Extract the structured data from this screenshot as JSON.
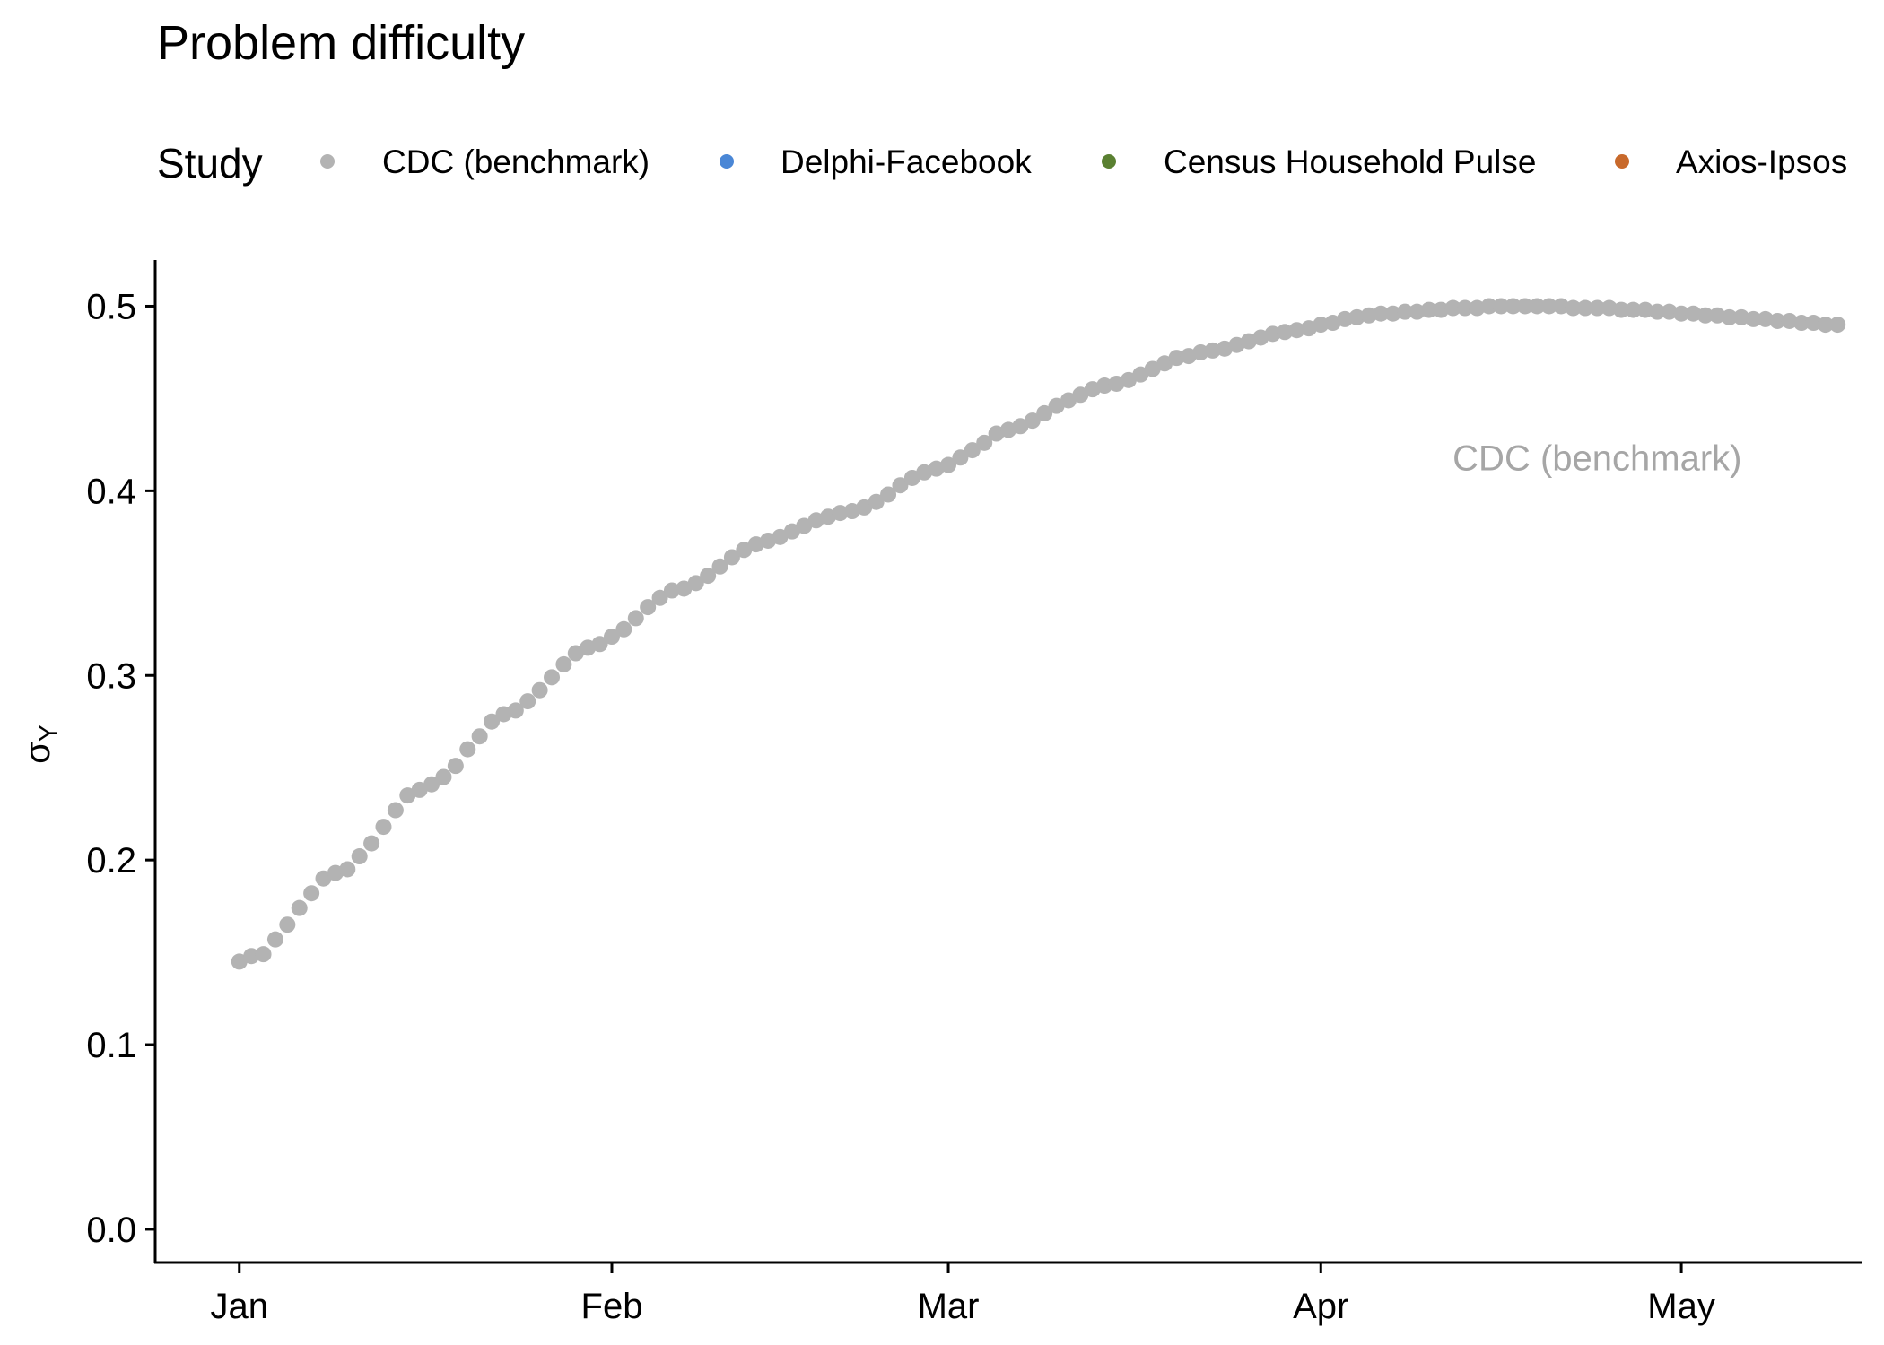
{
  "chart_data": {
    "type": "scatter",
    "title": "Problem difficulty",
    "xlabel": "",
    "ylabel": "σ",
    "ylabel_subscript": "Y",
    "legend": {
      "title": "Study",
      "position": "top",
      "items": [
        {
          "label": "CDC (benchmark)",
          "color": "#b3b3b3"
        },
        {
          "label": "Delphi-Facebook",
          "color": "#4a87d6"
        },
        {
          "label": "Census Household Pulse",
          "color": "#5a8031"
        },
        {
          "label": "Axios-Ipsos",
          "color": "#c8692b"
        }
      ]
    },
    "annotations": [
      {
        "text": "CDC (benchmark)",
        "x": "2021-04-24",
        "y": 0.418,
        "color": "#a6a6a6"
      }
    ],
    "x_axis": {
      "type": "date",
      "range": [
        "2020-12-25",
        "2021-05-16"
      ],
      "ticks": [
        {
          "value": "2021-01-01",
          "label": "Jan"
        },
        {
          "value": "2021-02-01",
          "label": "Feb"
        },
        {
          "value": "2021-03-01",
          "label": "Mar"
        },
        {
          "value": "2021-04-01",
          "label": "Apr"
        },
        {
          "value": "2021-05-01",
          "label": "May"
        }
      ]
    },
    "y_axis": {
      "range": [
        -0.018,
        0.525
      ],
      "ticks": [
        {
          "value": 0.0,
          "label": "0.0"
        },
        {
          "value": 0.1,
          "label": "0.1"
        },
        {
          "value": 0.2,
          "label": "0.2"
        },
        {
          "value": 0.3,
          "label": "0.3"
        },
        {
          "value": 0.4,
          "label": "0.4"
        },
        {
          "value": 0.5,
          "label": "0.5"
        }
      ]
    },
    "grid": false,
    "series": [
      {
        "name": "CDC (benchmark)",
        "color": "#b3b3b3",
        "x_start": "2021-01-01",
        "x_step_days": 1,
        "values": [
          0.145,
          0.148,
          0.149,
          0.157,
          0.165,
          0.174,
          0.182,
          0.19,
          0.193,
          0.195,
          0.202,
          0.209,
          0.218,
          0.227,
          0.235,
          0.238,
          0.241,
          0.245,
          0.251,
          0.26,
          0.267,
          0.275,
          0.279,
          0.281,
          0.286,
          0.292,
          0.299,
          0.306,
          0.312,
          0.315,
          0.317,
          0.321,
          0.325,
          0.331,
          0.337,
          0.342,
          0.346,
          0.347,
          0.35,
          0.354,
          0.359,
          0.364,
          0.368,
          0.371,
          0.373,
          0.375,
          0.378,
          0.381,
          0.384,
          0.386,
          0.388,
          0.389,
          0.391,
          0.394,
          0.398,
          0.403,
          0.407,
          0.41,
          0.412,
          0.414,
          0.418,
          0.422,
          0.426,
          0.431,
          0.433,
          0.435,
          0.438,
          0.442,
          0.446,
          0.449,
          0.452,
          0.455,
          0.457,
          0.458,
          0.46,
          0.463,
          0.466,
          0.469,
          0.472,
          0.473,
          0.475,
          0.476,
          0.477,
          0.479,
          0.481,
          0.483,
          0.485,
          0.486,
          0.487,
          0.488,
          0.49,
          0.491,
          0.493,
          0.494,
          0.495,
          0.496,
          0.496,
          0.497,
          0.497,
          0.498,
          0.498,
          0.499,
          0.499,
          0.499,
          0.5,
          0.5,
          0.5,
          0.5,
          0.5,
          0.5,
          0.5,
          0.499,
          0.499,
          0.499,
          0.499,
          0.498,
          0.498,
          0.498,
          0.497,
          0.497,
          0.496,
          0.496,
          0.495,
          0.495,
          0.494,
          0.494,
          0.493,
          0.493,
          0.492,
          0.492,
          0.491,
          0.491,
          0.49,
          0.49
        ]
      }
    ]
  }
}
